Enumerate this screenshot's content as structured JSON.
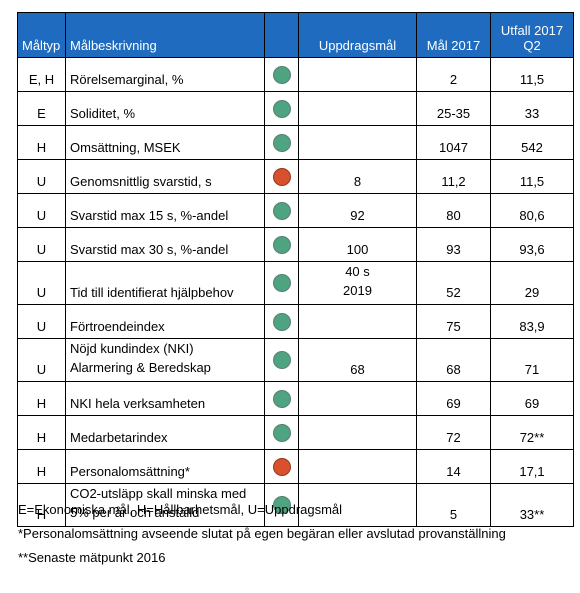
{
  "table": {
    "headers": {
      "maltyp": "Måltyp",
      "malbeskrivning": "Målbeskrivning",
      "status": "",
      "uppdragsmal": "Uppdragsmål",
      "mal2017": "Mål 2017",
      "utfall_line1": "Utfall 2017",
      "utfall_line2": "Q2"
    },
    "rows": [
      {
        "typ": "E, H",
        "desc": "Rörelsemarginal, %",
        "desc2": "",
        "status": "green",
        "uppdrag": "",
        "uppdrag2": "",
        "mal": "2",
        "utfall": "11,5"
      },
      {
        "typ": "E",
        "desc": "Soliditet, %",
        "desc2": "",
        "status": "green",
        "uppdrag": "",
        "uppdrag2": "",
        "mal": "25-35",
        "utfall": "33"
      },
      {
        "typ": "H",
        "desc": "Omsättning, MSEK",
        "desc2": "",
        "status": "green",
        "uppdrag": "",
        "uppdrag2": "",
        "mal": "1047",
        "utfall": "542"
      },
      {
        "typ": "U",
        "desc": "Genomsnittlig svarstid, s",
        "desc2": "",
        "status": "red",
        "uppdrag": "8",
        "uppdrag2": "",
        "mal": "11,2",
        "utfall": "11,5"
      },
      {
        "typ": "U",
        "desc": "Svarstid max 15 s, %-andel",
        "desc2": "",
        "status": "green",
        "uppdrag": "92",
        "uppdrag2": "",
        "mal": "80",
        "utfall": "80,6"
      },
      {
        "typ": "U",
        "desc": "Svarstid max 30 s, %-andel",
        "desc2": "",
        "status": "green",
        "uppdrag": "100",
        "uppdrag2": "",
        "mal": "93",
        "utfall": "93,6"
      },
      {
        "typ": "U",
        "desc": "Tid till identifierat hjälpbehov",
        "desc2": "",
        "status": "green",
        "uppdrag": "40 s",
        "uppdrag2": "2019",
        "mal": "52",
        "utfall": "29"
      },
      {
        "typ": "U",
        "desc": "Förtroendeindex",
        "desc2": "",
        "status": "green",
        "uppdrag": "",
        "uppdrag2": "",
        "mal": "75",
        "utfall": "83,9"
      },
      {
        "typ": "U",
        "desc": "Nöjd kundindex (NKI)",
        "desc2": "Alarmering & Beredskap",
        "status": "green",
        "uppdrag": "68",
        "uppdrag2": "",
        "mal": "68",
        "utfall": "71"
      },
      {
        "typ": "H",
        "desc": "NKI hela verksamheten",
        "desc2": "",
        "status": "green",
        "uppdrag": "",
        "uppdrag2": "",
        "mal": "69",
        "utfall": "69"
      },
      {
        "typ": "H",
        "desc": "Medarbetarindex",
        "desc2": "",
        "status": "green",
        "uppdrag": "",
        "uppdrag2": "",
        "mal": "72",
        "utfall": "72**"
      },
      {
        "typ": "H",
        "desc": "Personalomsättning*",
        "desc2": "",
        "status": "red",
        "uppdrag": "",
        "uppdrag2": "",
        "mal": "14",
        "utfall": "17,1"
      },
      {
        "typ": "H",
        "desc": "CO2-utsläpp skall minska med",
        "desc2": "5% per år och anställd",
        "status": "green",
        "uppdrag": "",
        "uppdrag2": "",
        "mal": "5",
        "utfall": "33**"
      }
    ]
  },
  "footnotes": {
    "legend": "E=Ekonomiska mål, H=Hållbarhetsmål, U=Uppdragsmål",
    "personal": "*Personalomsättning avseende slutat på egen begäran eller avslutad provanställning",
    "senaste": "**Senaste mätpunkt 2016"
  },
  "colors": {
    "header_bg": "#1f6bbf",
    "status_green": "#4ea381",
    "status_red": "#d9502c"
  }
}
